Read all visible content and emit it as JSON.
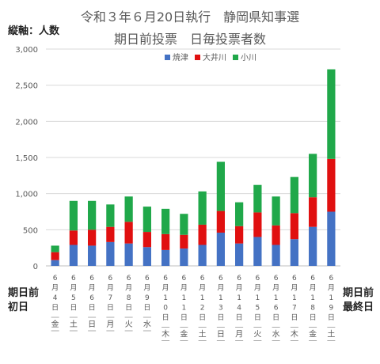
{
  "chart_data": {
    "type": "bar",
    "stacked": true,
    "title": "令和３年６月20日執行　静岡県知事選",
    "subtitle": "期日前投票　日毎投票者数",
    "ylabel": "縦軸：人数",
    "ylim": [
      0,
      3000
    ],
    "yticks": [
      "0",
      "500",
      "1,000",
      "1,500",
      "2,000",
      "2,500",
      "3,000"
    ],
    "grid": true,
    "legend_position": "top-right",
    "left_label": [
      "期日前",
      "初日"
    ],
    "right_label": [
      "期日前",
      "最終日"
    ],
    "categories": [
      {
        "date": [
          "6",
          "月",
          "4",
          "日"
        ],
        "dow": "金"
      },
      {
        "date": [
          "6",
          "月",
          "5",
          "日"
        ],
        "dow": "土"
      },
      {
        "date": [
          "6",
          "月",
          "6",
          "日"
        ],
        "dow": "日"
      },
      {
        "date": [
          "6",
          "月",
          "7",
          "日"
        ],
        "dow": "月"
      },
      {
        "date": [
          "6",
          "月",
          "8",
          "日"
        ],
        "dow": "火"
      },
      {
        "date": [
          "6",
          "月",
          "9",
          "日"
        ],
        "dow": "水"
      },
      {
        "date": [
          "6",
          "月",
          "1",
          "0",
          "日"
        ],
        "dow": "木"
      },
      {
        "date": [
          "6",
          "月",
          "1",
          "1",
          "日"
        ],
        "dow": "金"
      },
      {
        "date": [
          "6",
          "月",
          "1",
          "2",
          "日"
        ],
        "dow": "土"
      },
      {
        "date": [
          "6",
          "月",
          "1",
          "3",
          "日"
        ],
        "dow": "日"
      },
      {
        "date": [
          "6",
          "月",
          "1",
          "4",
          "日"
        ],
        "dow": "月"
      },
      {
        "date": [
          "6",
          "月",
          "1",
          "5",
          "日"
        ],
        "dow": "火"
      },
      {
        "date": [
          "6",
          "月",
          "1",
          "6",
          "日"
        ],
        "dow": "水"
      },
      {
        "date": [
          "6",
          "月",
          "1",
          "7",
          "日"
        ],
        "dow": "木"
      },
      {
        "date": [
          "6",
          "月",
          "1",
          "8",
          "日"
        ],
        "dow": "金"
      },
      {
        "date": [
          "6",
          "月",
          "1",
          "9",
          "日"
        ],
        "dow": "土"
      }
    ],
    "series": [
      {
        "name": "焼津",
        "color": "#4472C4",
        "values": [
          80,
          290,
          280,
          330,
          310,
          260,
          220,
          240,
          290,
          460,
          310,
          400,
          290,
          370,
          540,
          750
        ]
      },
      {
        "name": "大井川",
        "color": "#E01010",
        "values": [
          110,
          200,
          220,
          210,
          300,
          210,
          220,
          190,
          280,
          300,
          240,
          340,
          270,
          360,
          410,
          730
        ]
      },
      {
        "name": "小川",
        "color": "#20A84A",
        "values": [
          90,
          410,
          400,
          310,
          350,
          350,
          350,
          290,
          460,
          680,
          330,
          380,
          400,
          500,
          600,
          1240
        ]
      }
    ]
  }
}
